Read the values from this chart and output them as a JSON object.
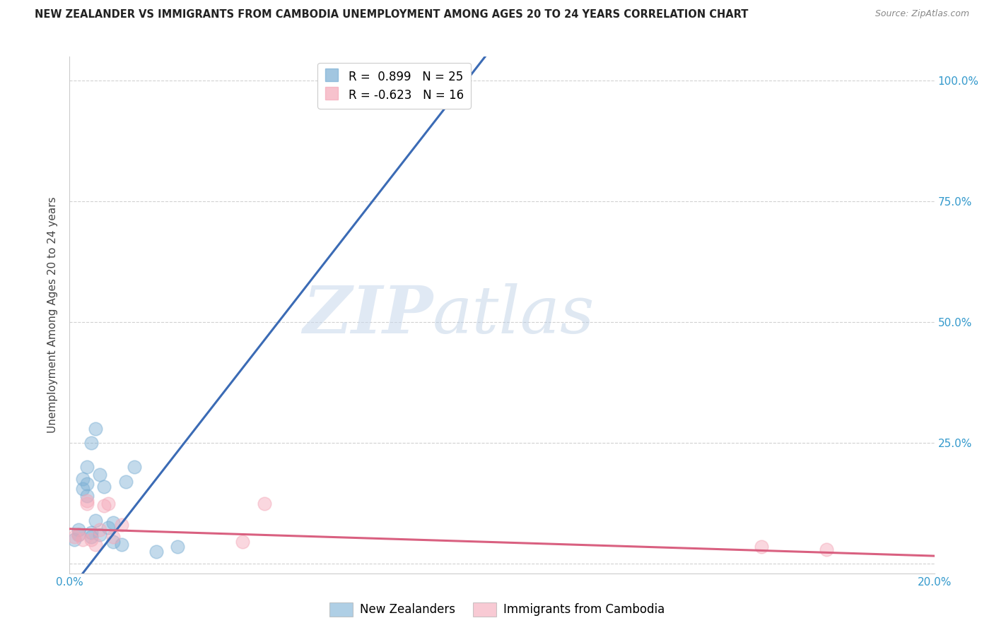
{
  "title": "NEW ZEALANDER VS IMMIGRANTS FROM CAMBODIA UNEMPLOYMENT AMONG AGES 20 TO 24 YEARS CORRELATION CHART",
  "source": "Source: ZipAtlas.com",
  "xlabel": "",
  "ylabel": "Unemployment Among Ages 20 to 24 years",
  "xlim": [
    0.0,
    0.2
  ],
  "ylim": [
    -0.02,
    1.05
  ],
  "yticks": [
    0.0,
    0.25,
    0.5,
    0.75,
    1.0
  ],
  "ytick_labels": [
    "",
    "25.0%",
    "50.0%",
    "75.0%",
    "100.0%"
  ],
  "xticks": [
    0.0,
    0.04,
    0.08,
    0.12,
    0.16,
    0.2
  ],
  "xtick_labels": [
    "0.0%",
    "",
    "",
    "",
    "",
    "20.0%"
  ],
  "blue_R": 0.899,
  "blue_N": 25,
  "pink_R": -0.623,
  "pink_N": 16,
  "blue_color": "#7BAFD4",
  "pink_color": "#F4A8B8",
  "blue_line_color": "#3B6BB5",
  "pink_line_color": "#D96080",
  "watermark_zip": "ZIP",
  "watermark_atlas": "atlas",
  "legend_label_blue": "New Zealanders",
  "legend_label_pink": "Immigrants from Cambodia",
  "blue_slope": 11.5,
  "blue_intercept": -0.055,
  "pink_slope": -0.28,
  "pink_intercept": 0.072,
  "blue_x": [
    0.001,
    0.002,
    0.002,
    0.003,
    0.003,
    0.004,
    0.004,
    0.004,
    0.005,
    0.005,
    0.005,
    0.006,
    0.006,
    0.007,
    0.007,
    0.008,
    0.009,
    0.01,
    0.01,
    0.012,
    0.013,
    0.015,
    0.02,
    0.025,
    0.075
  ],
  "blue_y": [
    0.05,
    0.06,
    0.07,
    0.155,
    0.175,
    0.14,
    0.165,
    0.2,
    0.055,
    0.065,
    0.25,
    0.28,
    0.09,
    0.06,
    0.185,
    0.16,
    0.075,
    0.045,
    0.085,
    0.04,
    0.17,
    0.2,
    0.025,
    0.035,
    1.0
  ],
  "pink_x": [
    0.001,
    0.002,
    0.003,
    0.004,
    0.004,
    0.005,
    0.006,
    0.007,
    0.008,
    0.009,
    0.01,
    0.012,
    0.04,
    0.045,
    0.16,
    0.175
  ],
  "pink_y": [
    0.055,
    0.06,
    0.05,
    0.125,
    0.13,
    0.05,
    0.04,
    0.07,
    0.12,
    0.125,
    0.055,
    0.08,
    0.045,
    0.125,
    0.035,
    0.03
  ]
}
